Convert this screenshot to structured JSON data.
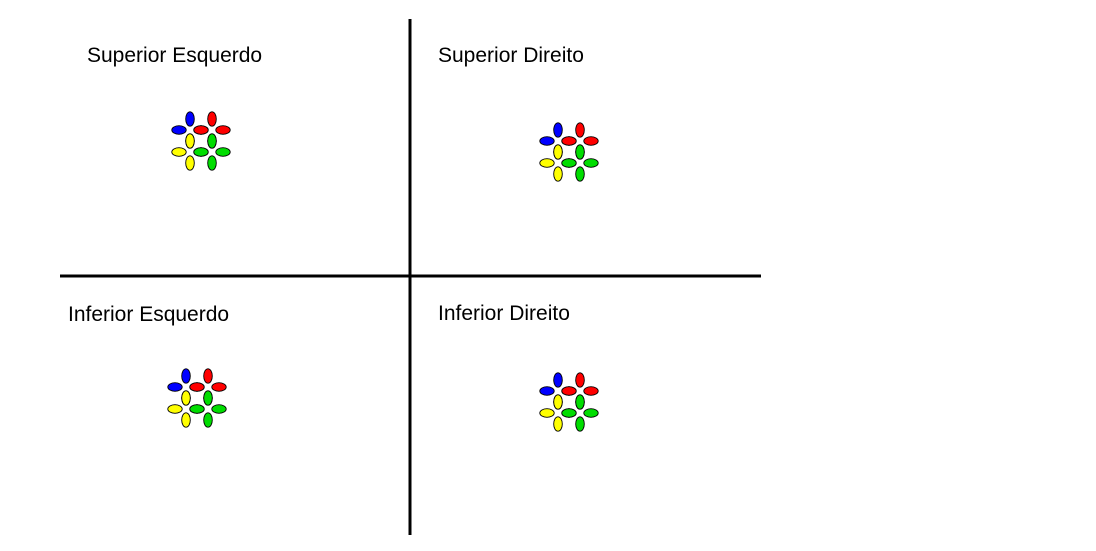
{
  "colors": {
    "background": "#ffffff",
    "axes": "#000000",
    "blue": "#0000ff",
    "red": "#ff0000",
    "yellow": "#ffff00",
    "green": "#00dd00"
  },
  "quadrants": [
    {
      "id": "top-left",
      "label": "Superior Esquerdo",
      "clusters": [
        [
          "blue",
          "red"
        ],
        [
          "yellow",
          "green"
        ]
      ]
    },
    {
      "id": "top-right",
      "label": "Superior Direito",
      "clusters": [
        [
          "blue",
          "red"
        ],
        [
          "yellow",
          "green"
        ]
      ]
    },
    {
      "id": "bottom-left",
      "label": "Inferior Esquerdo",
      "clusters": [
        [
          "blue",
          "red"
        ],
        [
          "yellow",
          "green"
        ]
      ]
    },
    {
      "id": "bottom-right",
      "label": "Inferior Direito",
      "clusters": [
        [
          "blue",
          "red"
        ],
        [
          "yellow",
          "green"
        ]
      ]
    }
  ]
}
